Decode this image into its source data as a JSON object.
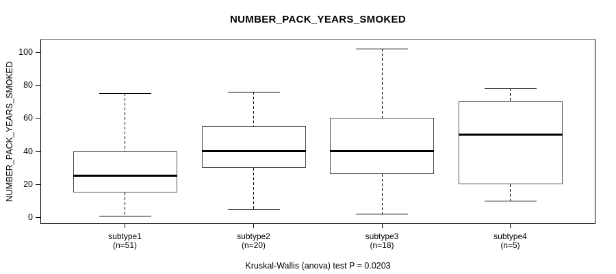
{
  "chart_data": {
    "type": "boxplot",
    "title": "NUMBER_PACK_YEARS_SMOKED",
    "xlabel": "",
    "ylabel": "NUMBER_PACK_YEARS_SMOKED",
    "annotation": "Kruskal-Wallis (anova) test P = 0.0203",
    "ylim": [
      -4,
      107
    ],
    "yticks": [
      0,
      20,
      40,
      60,
      80,
      100
    ],
    "grid": false,
    "legend": null,
    "categories": [
      "subtype1",
      "subtype2",
      "subtype3",
      "subtype4"
    ],
    "category_sublabels": [
      "(n=51)",
      "(n=20)",
      "(n=18)",
      "(n=5)"
    ],
    "boxes": [
      {
        "label": "subtype1",
        "n": 51,
        "whisker_low": 1,
        "q1": 15,
        "median": 25,
        "q3": 40,
        "whisker_high": 75
      },
      {
        "label": "subtype2",
        "n": 20,
        "whisker_low": 5,
        "q1": 30,
        "median": 40,
        "q3": 55,
        "whisker_high": 76
      },
      {
        "label": "subtype3",
        "n": 18,
        "whisker_low": 2,
        "q1": 26,
        "median": 40,
        "q3": 60,
        "whisker_high": 102
      },
      {
        "label": "subtype4",
        "n": 5,
        "whisker_low": 10,
        "q1": 20,
        "median": 50,
        "q3": 70,
        "whisker_high": 78
      }
    ],
    "colors": {
      "background": "#ffffff",
      "text": "#000000",
      "frame": "#000000",
      "box_border": "#4d4d4d",
      "median": "#000000",
      "whisker": "#000000"
    }
  }
}
